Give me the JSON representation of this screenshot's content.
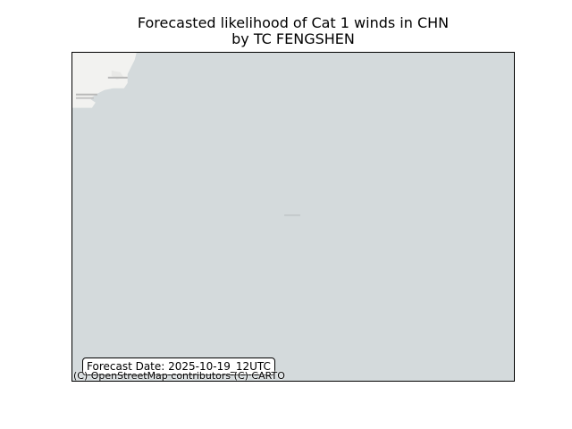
{
  "title": {
    "line1": "Forecasted likelihood of Cat 1 winds in CHN",
    "line2": "by TC FENGSHEN"
  },
  "map": {
    "basemap": "CARTO light",
    "water_color": "#d4dadc",
    "land_color": "#f2f2f0",
    "forecast_date_label": "Forecast Date: 2025-10-19_12UTC",
    "attribution": "(C) OpenStreetMap contributors (C) CARTO"
  }
}
